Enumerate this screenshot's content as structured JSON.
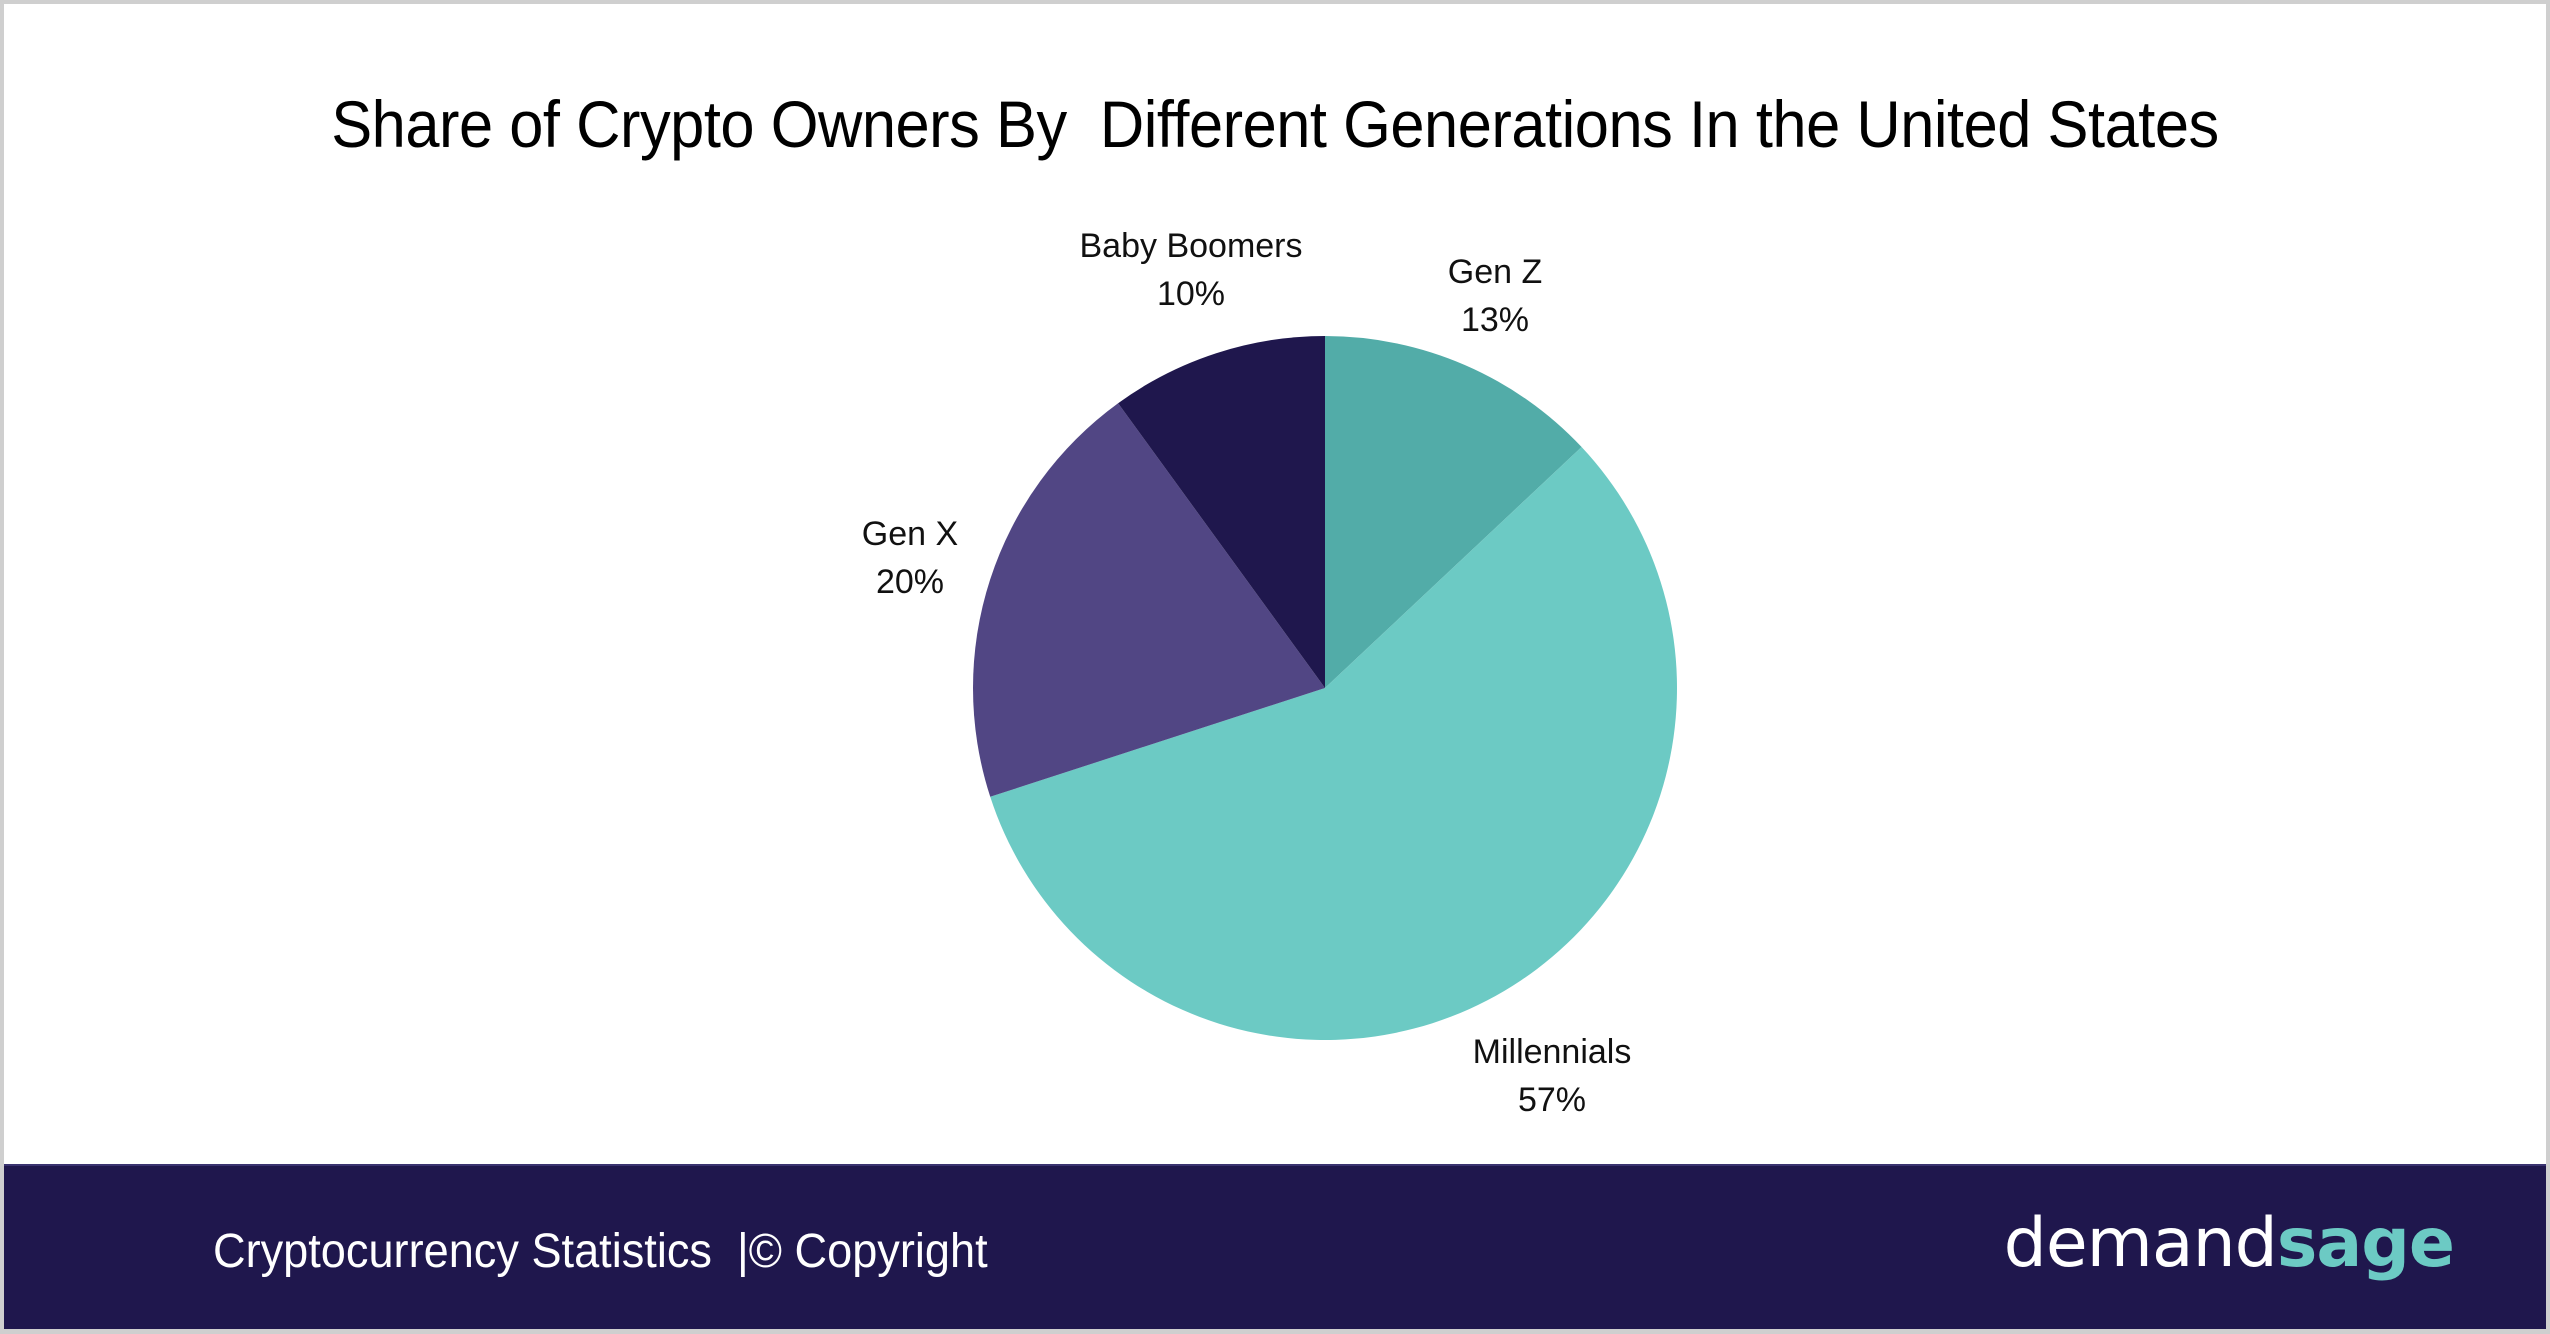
{
  "title": "Share of Crypto Owners By  Different Generations In the United States",
  "colors": {
    "gen_z": "#52aca8",
    "millennials": "#6ccac4",
    "gen_x": "#514684",
    "baby_boomers": "#1f174d",
    "footer_bg": "#1f174d",
    "logo_accent": "#6ccac4"
  },
  "chart_data": {
    "type": "pie",
    "title": "Share of Crypto Owners By  Different Generations In the United States",
    "categories": [
      "Gen Z",
      "Millennials",
      "Gen X",
      "Baby Boomers"
    ],
    "values": [
      13,
      57,
      20,
      10
    ],
    "unit": "%",
    "start_angle": "12 o'clock",
    "direction": "clockwise",
    "slices": [
      {
        "label": "Gen Z",
        "value": 13,
        "value_label": "13%",
        "color": "#52aca8"
      },
      {
        "label": "Millennials",
        "value": 57,
        "value_label": "57%",
        "color": "#6ccac4"
      },
      {
        "label": "Gen X",
        "value": 20,
        "value_label": "20%",
        "color": "#514684"
      },
      {
        "label": "Baby Boomers",
        "value": 10,
        "value_label": "10%",
        "color": "#1f174d"
      }
    ],
    "legend": "none (data labels outside slices)"
  },
  "labels": [
    {
      "name": "Gen Z",
      "pct": "13%"
    },
    {
      "name": "Millennials",
      "pct": "57%"
    },
    {
      "name": "Gen X",
      "pct": "20%"
    },
    {
      "name": "Baby Boomers",
      "pct": "10%"
    }
  ],
  "footer": {
    "text": "Cryptocurrency Statistics  |© Copyright",
    "logo_part1": "demand",
    "logo_part2": "sage"
  }
}
